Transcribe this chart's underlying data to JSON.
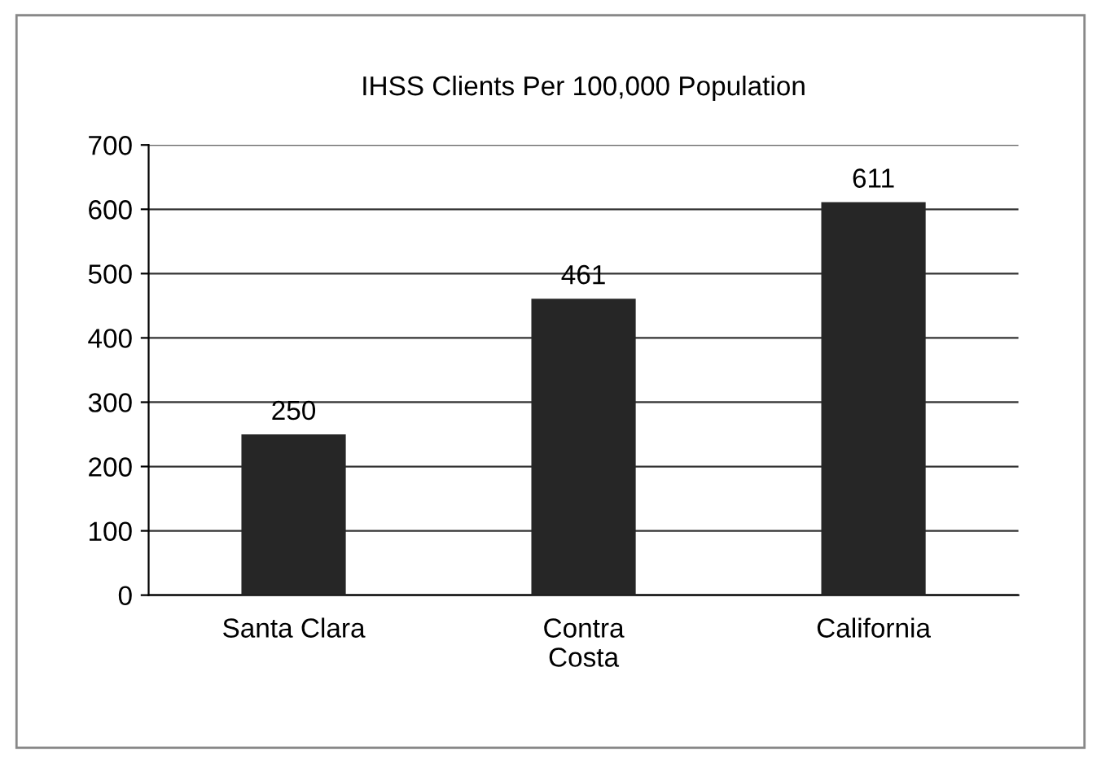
{
  "chart_data": {
    "type": "bar",
    "title": "IHSS Clients Per 100,000 Population",
    "categories": [
      "Santa Clara",
      "Contra\nCosta",
      "California"
    ],
    "values": [
      250,
      461,
      611
    ],
    "color": "#262626",
    "ylim": [
      0,
      700
    ],
    "yticks": [
      0,
      100,
      200,
      300,
      400,
      500,
      600,
      700
    ],
    "grid": "y",
    "data_labels": true
  }
}
